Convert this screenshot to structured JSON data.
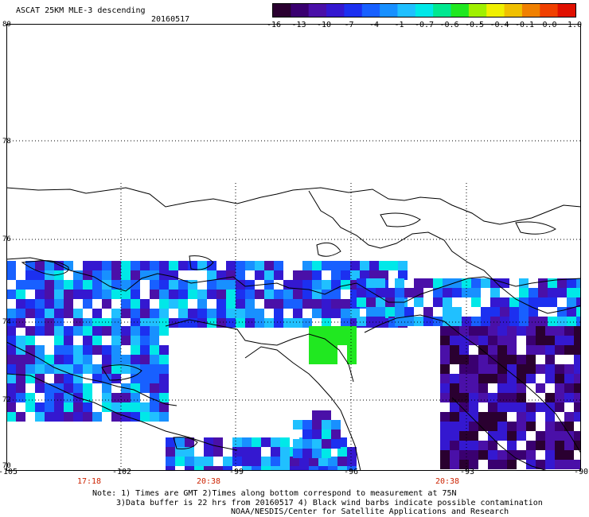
{
  "header": {
    "title": "ASCAT 25KM MLE-3 descending",
    "date": "20160517"
  },
  "colorbar": {
    "ticks": [
      "-16",
      "-13",
      "-10",
      "-7",
      "-4",
      "-1",
      "-0.7",
      "-0.6",
      "-0.5",
      "-0.4",
      "-0.1",
      "0.0",
      "1.0"
    ],
    "colors": [
      "#2a0030",
      "#3a0070",
      "#4a10a8",
      "#3418d0",
      "#1c30f0",
      "#1860ff",
      "#1890ff",
      "#20c0ff",
      "#00e8e8",
      "#00e890",
      "#20e820",
      "#a0f000",
      "#f0f000",
      "#f0c000",
      "#f08000",
      "#f04000",
      "#e01000"
    ]
  },
  "map": {
    "lat_labels": [
      "80",
      "78",
      "76",
      "74",
      "72",
      "70"
    ],
    "lon_labels": [
      "-105",
      "-102",
      "-99",
      "-96",
      "-93",
      "-90"
    ],
    "time_labels": [
      "17:18",
      "20:38",
      "20:38"
    ]
  },
  "notes": {
    "line1": "Note: 1) Times are GMT 2)Times along bottom correspond to measurement at 75N",
    "line2": "3)Data buffer is 22 hrs from 20160517 4) Black wind barbs indicate possible contamination",
    "line3": "NOAA/NESDIS/Center for Satellite Applications and Research"
  }
}
